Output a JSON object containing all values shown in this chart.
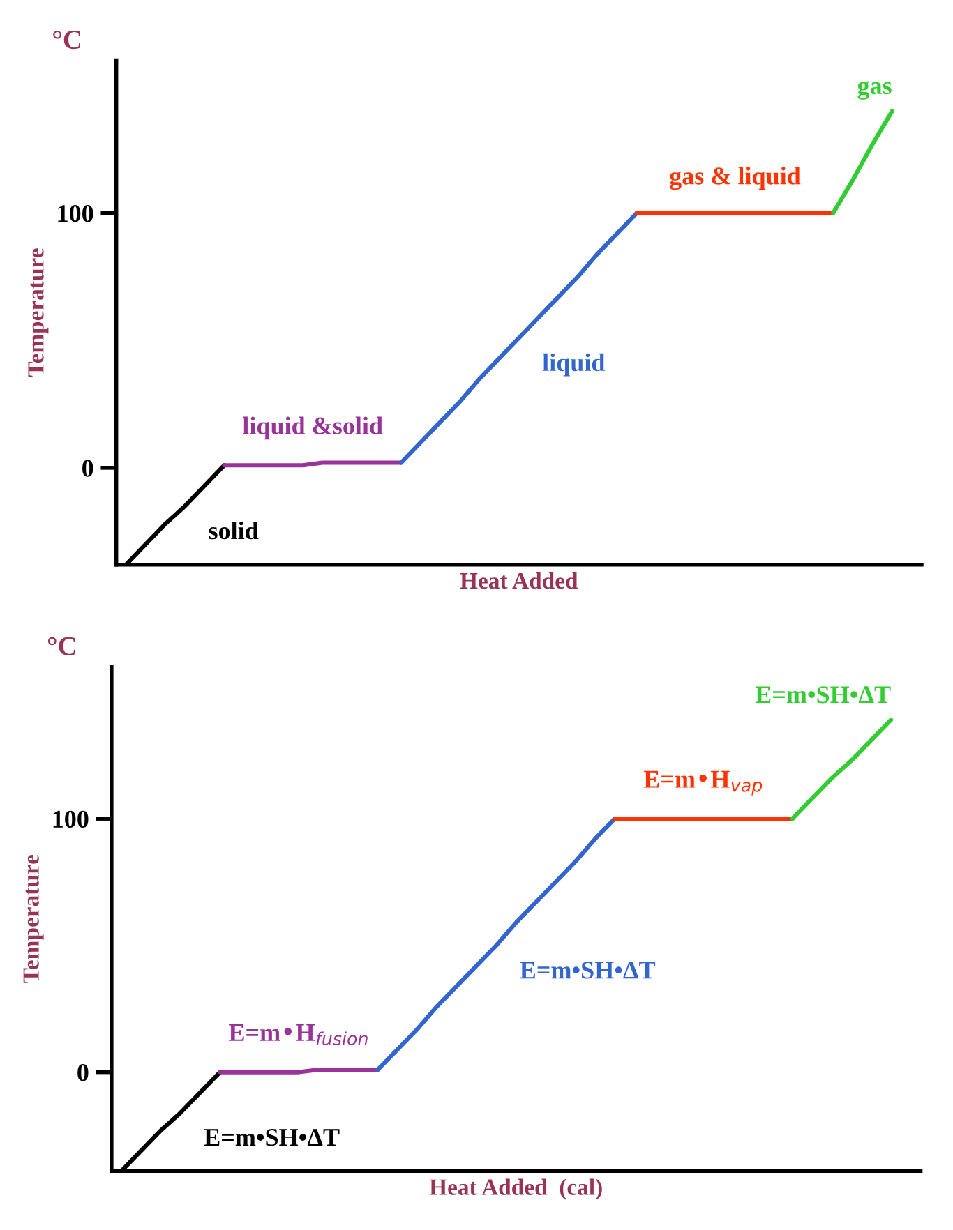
{
  "chart_data": [
    {
      "type": "line",
      "title": "°C",
      "xlabel": "Heat Added",
      "ylabel": "Temperature",
      "ylim": [
        -38,
        160
      ],
      "yticks": [
        0,
        100
      ],
      "tick_labels": "y",
      "grid": false,
      "legend": false,
      "categories": [
        null,
        null,
        null,
        null,
        null,
        null,
        null,
        null,
        null,
        null,
        null,
        null,
        null,
        null,
        null,
        null,
        null,
        null,
        null,
        null,
        null,
        null,
        null,
        null,
        null,
        null,
        null,
        null,
        null,
        null,
        null,
        null,
        null,
        null,
        null,
        null,
        null,
        null,
        null,
        null,
        null
      ],
      "series": [
        {
          "color": "#000000",
          "values": [
            -38,
            -30,
            -22,
            -15,
            -7,
            1,
            null,
            null,
            null,
            null,
            null,
            null,
            null,
            null,
            null,
            null,
            null,
            null,
            null,
            null,
            null,
            null,
            null,
            null,
            null,
            null,
            null,
            null,
            null,
            null,
            null,
            null,
            null,
            null,
            null,
            null,
            null,
            null,
            null,
            null,
            null
          ]
        },
        {
          "color": "#993399",
          "values": [
            null,
            null,
            null,
            null,
            null,
            1,
            1,
            1,
            1,
            1,
            2,
            2,
            2,
            2,
            2,
            null,
            null,
            null,
            null,
            null,
            null,
            null,
            null,
            null,
            null,
            null,
            null,
            null,
            null,
            null,
            null,
            null,
            null,
            null,
            null,
            null,
            null,
            null,
            null,
            null,
            null
          ]
        },
        {
          "color": "#3366cc",
          "values": [
            null,
            null,
            null,
            null,
            null,
            null,
            null,
            null,
            null,
            null,
            null,
            null,
            null,
            null,
            2,
            10,
            18,
            26,
            35,
            43,
            51,
            59,
            67,
            75,
            84,
            92,
            100,
            null,
            null,
            null,
            null,
            null,
            null,
            null,
            null,
            null,
            null,
            null,
            null,
            null,
            null
          ]
        },
        {
          "color": "#ff3300",
          "values": [
            null,
            null,
            null,
            null,
            null,
            null,
            null,
            null,
            null,
            null,
            null,
            null,
            null,
            null,
            null,
            null,
            null,
            null,
            null,
            null,
            null,
            null,
            null,
            null,
            null,
            null,
            100,
            100,
            100,
            100,
            100,
            100,
            100,
            100,
            100,
            100,
            100,
            null,
            null,
            null,
            null
          ]
        },
        {
          "color": "#33cc33",
          "values": [
            null,
            null,
            null,
            null,
            null,
            null,
            null,
            null,
            null,
            null,
            null,
            null,
            null,
            null,
            null,
            null,
            null,
            null,
            null,
            null,
            null,
            null,
            null,
            null,
            null,
            null,
            null,
            null,
            null,
            null,
            null,
            null,
            null,
            null,
            null,
            null,
            100,
            113,
            127,
            140,
            null
          ]
        }
      ],
      "annotations": [
        "solid",
        "liquid &solid",
        "liquid",
        "gas & liquid",
        "gas"
      ]
    },
    {
      "type": "line",
      "title": "°C",
      "xlabel": "Heat Added  (cal)",
      "ylabel": "Temperature",
      "ylim": [
        -39,
        160
      ],
      "yticks": [
        0,
        100
      ],
      "tick_labels": "y",
      "grid": false,
      "legend": false,
      "categories": [
        null,
        null,
        null,
        null,
        null,
        null,
        null,
        null,
        null,
        null,
        null,
        null,
        null,
        null,
        null,
        null,
        null,
        null,
        null,
        null,
        null,
        null,
        null,
        null,
        null,
        null,
        null,
        null,
        null,
        null,
        null,
        null,
        null,
        null,
        null,
        null,
        null,
        null,
        null,
        null,
        null
      ],
      "series": [
        {
          "color": "#000000",
          "values": [
            -39,
            -31,
            -23,
            -16,
            -8,
            0,
            null,
            null,
            null,
            null,
            null,
            null,
            null,
            null,
            null,
            null,
            null,
            null,
            null,
            null,
            null,
            null,
            null,
            null,
            null,
            null,
            null,
            null,
            null,
            null,
            null,
            null,
            null,
            null,
            null,
            null,
            null,
            null,
            null,
            null,
            null
          ]
        },
        {
          "color": "#993399",
          "values": [
            null,
            null,
            null,
            null,
            null,
            0,
            0,
            0,
            0,
            0,
            1,
            1,
            1,
            1,
            null,
            null,
            null,
            null,
            null,
            null,
            null,
            null,
            null,
            null,
            null,
            null,
            null,
            null,
            null,
            null,
            null,
            null,
            null,
            null,
            null,
            null,
            null,
            null,
            null,
            null,
            null
          ]
        },
        {
          "color": "#3366cc",
          "values": [
            null,
            null,
            null,
            null,
            null,
            null,
            null,
            null,
            null,
            null,
            null,
            null,
            null,
            1,
            9,
            17,
            26,
            34,
            42,
            50,
            59,
            67,
            75,
            83,
            92,
            100,
            null,
            null,
            null,
            null,
            null,
            null,
            null,
            null,
            null,
            null,
            null,
            null,
            null,
            null,
            null
          ]
        },
        {
          "color": "#ff3300",
          "values": [
            null,
            null,
            null,
            null,
            null,
            null,
            null,
            null,
            null,
            null,
            null,
            null,
            null,
            null,
            null,
            null,
            null,
            null,
            null,
            null,
            null,
            null,
            null,
            null,
            null,
            100,
            100,
            100,
            100,
            100,
            100,
            100,
            100,
            100,
            100,
            null,
            null,
            null,
            null,
            null,
            null
          ]
        },
        {
          "color": "#33cc33",
          "values": [
            null,
            null,
            null,
            null,
            null,
            null,
            null,
            null,
            null,
            null,
            null,
            null,
            null,
            null,
            null,
            null,
            null,
            null,
            null,
            null,
            null,
            null,
            null,
            null,
            null,
            null,
            null,
            null,
            null,
            null,
            null,
            null,
            null,
            null,
            100,
            108,
            116,
            123,
            131,
            139,
            null
          ]
        }
      ],
      "annotations": [
        "E=m•SH•ΔT",
        "E=m•H$_{fusion}$",
        "E=m•SH•ΔT",
        "E=m•H$_{vap}$",
        "E=m•SH•ΔT"
      ]
    }
  ]
}
